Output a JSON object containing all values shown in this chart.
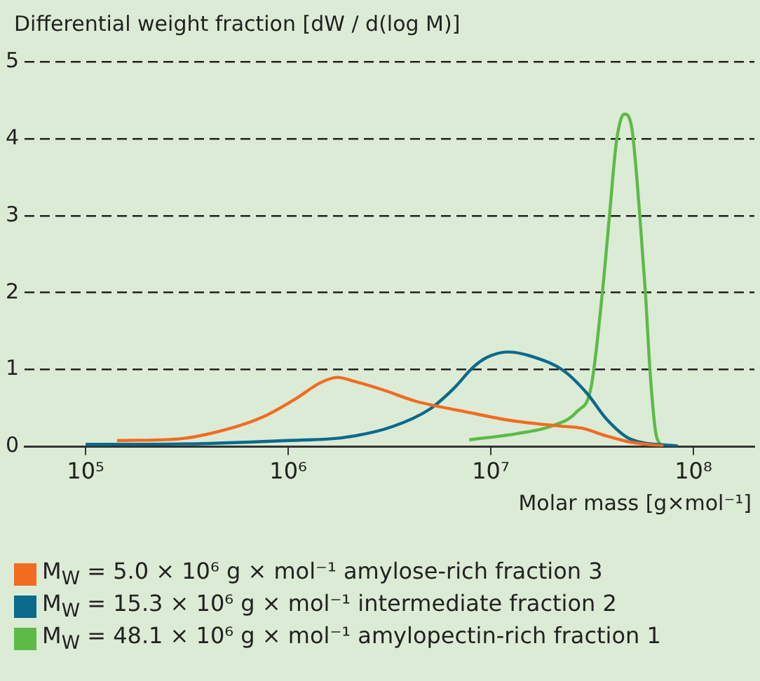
{
  "chart_data": {
    "type": "line",
    "ylabel": "Differential weight fraction [dW / d(log M)]",
    "xlabel": "Molar mass [g×mol⁻¹]",
    "log": "x",
    "grid": "y",
    "legend": "bottom",
    "xlim": [
      50000,
      200000000
    ],
    "xticks": [
      {
        "value": 100000,
        "label": "10⁵"
      },
      {
        "value": 1000000,
        "label": "10⁶"
      },
      {
        "value": 10000000,
        "label": "10⁷"
      },
      {
        "value": 100000000,
        "label": "10⁸"
      }
    ],
    "ylim": [
      0,
      5
    ],
    "yticks": [
      0,
      1,
      2,
      3,
      4,
      5
    ],
    "series": [
      {
        "name": "M$_{W}$ = 5.0 × 10⁶ g × mol⁻¹ amylose-rich fraction 3",
        "color": "#f26b21",
        "x": [
          143000,
          285000,
          489000,
          755000,
          1100000,
          1440000,
          1750000,
          2110000,
          2920000,
          4270000,
          7330000,
          12600000,
          21600000,
          28200000,
          37200000,
          48800000,
          71100000
        ],
        "values": [
          0.08,
          0.1,
          0.22,
          0.39,
          0.63,
          0.83,
          0.9,
          0.85,
          0.74,
          0.59,
          0.46,
          0.34,
          0.27,
          0.24,
          0.14,
          0.06,
          0.01
        ]
      },
      {
        "name": "M$_{W}$ = 15.3 × 10⁶ g × mol⁻¹ intermediate fraction 2",
        "color": "#0a6a8c",
        "x": [
          100000,
          372000,
          1000000,
          1890000,
          3260000,
          5010000,
          6580000,
          8170000,
          9590000,
          12200000,
          16500000,
          22800000,
          29900000,
          37200000,
          48800000,
          83800000
        ],
        "values": [
          0.03,
          0.04,
          0.08,
          0.12,
          0.26,
          0.49,
          0.76,
          1.03,
          1.16,
          1.23,
          1.16,
          0.99,
          0.69,
          0.36,
          0.1,
          0.01
        ]
      },
      {
        "name": "M$_{W}$ = 48.1 × 10⁶ g × mol⁻¹ amylopectin-rich fraction 1",
        "color": "#5bbb46",
        "x": [
          7820000,
          13500000,
          20600000,
          26700000,
          31300000,
          35600000,
          38500000,
          41700000,
          45600000,
          49500000,
          54200000,
          57900000,
          61100000,
          65000000,
          69200000
        ],
        "values": [
          0.09,
          0.17,
          0.28,
          0.46,
          0.78,
          2.02,
          2.99,
          3.96,
          4.32,
          4.16,
          3.05,
          2.02,
          0.98,
          0.2,
          0.01
        ]
      }
    ]
  }
}
